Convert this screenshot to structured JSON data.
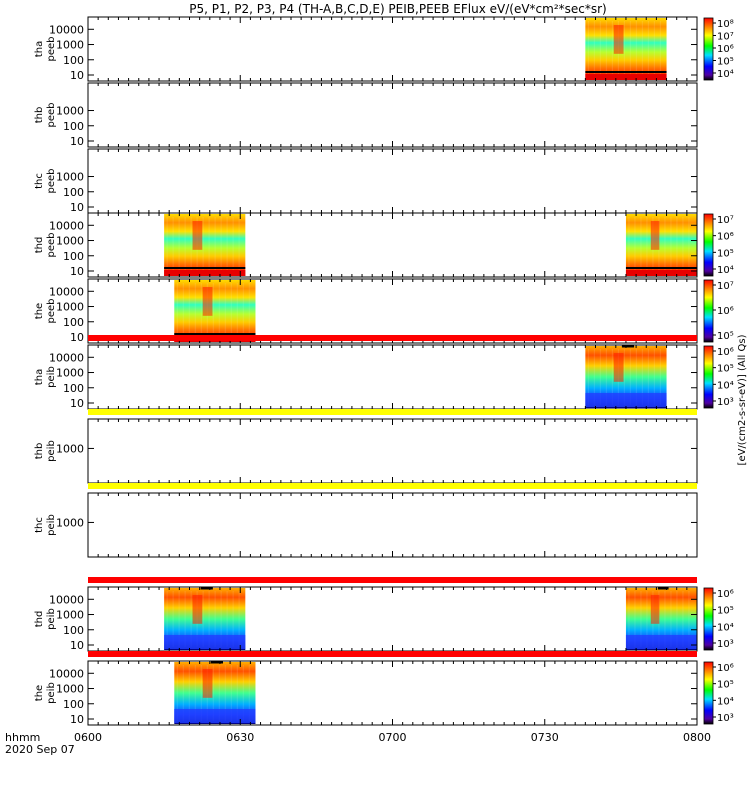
{
  "chart_data": {
    "type": "heatmap",
    "title": "P5, P1, P2, P3, P4 (TH-A,B,C,D,E) PEIB,PEEB EFlux eV/(eV*cm²*sec*sr)",
    "x_axis": {
      "ticks": [
        "0600",
        "0630",
        "0700",
        "0730",
        "0800"
      ],
      "range_minutes": [
        0,
        120
      ],
      "label_lines": [
        "hhmm",
        "2020 Sep 07"
      ]
    },
    "colorbar_units": "[eV/(cm2-s-sr-eV)] (All Qs)",
    "panels": [
      {
        "name": "tha-peeb",
        "ylabel": [
          "tha",
          "peeb"
        ],
        "yticks": [
          "10",
          "100",
          "1000",
          "10000"
        ],
        "cbar_ticks": [
          "10⁴",
          "10⁵",
          "10⁶",
          "10⁷",
          "10⁸"
        ],
        "blocks": [
          [
            98,
            114
          ]
        ],
        "stripe": null
      },
      {
        "name": "thb-peeb",
        "ylabel": [
          "thb",
          "peeb"
        ],
        "yticks": [
          "10",
          "100",
          "1000"
        ],
        "cbar_ticks": [],
        "blocks": [],
        "stripe": null
      },
      {
        "name": "thc-peeb",
        "ylabel": [
          "thc",
          "peeb"
        ],
        "yticks": [
          "10",
          "100",
          "1000"
        ],
        "cbar_ticks": [],
        "blocks": [],
        "stripe": null
      },
      {
        "name": "thd-peeb",
        "ylabel": [
          "thd",
          "peeb"
        ],
        "yticks": [
          "10",
          "100",
          "1000",
          "10000"
        ],
        "cbar_ticks": [
          "10⁴",
          "10⁵",
          "10⁶",
          "10⁷"
        ],
        "blocks": [
          [
            15,
            31
          ],
          [
            106,
            120
          ]
        ],
        "stripe": null
      },
      {
        "name": "the-peeb",
        "ylabel": [
          "the",
          "peeb"
        ],
        "yticks": [
          "10",
          "100",
          "1000",
          "10000"
        ],
        "cbar_ticks": [
          "10⁵",
          "10⁶",
          "10⁷"
        ],
        "blocks": [
          [
            17,
            33
          ]
        ],
        "stripe": null
      },
      {
        "name": "tha-peib",
        "ylabel": [
          "tha",
          "peib"
        ],
        "yticks": [
          "10",
          "100",
          "1000",
          "10000"
        ],
        "cbar_ticks": [
          "10³",
          "10⁴",
          "10⁵",
          "10⁶"
        ],
        "blocks": [
          [
            98,
            114
          ]
        ],
        "stripe": "red"
      },
      {
        "name": "thb-peib",
        "ylabel": [
          "thb",
          "peib"
        ],
        "yticks": [
          "1000"
        ],
        "cbar_ticks": [],
        "blocks": [],
        "stripe": "yellow"
      },
      {
        "name": "thc-peib",
        "ylabel": [
          "thc",
          "peib"
        ],
        "yticks": [
          "1000"
        ],
        "cbar_ticks": [],
        "blocks": [],
        "stripe": "yellow"
      },
      {
        "name": "thd-peib",
        "ylabel": [
          "thd",
          "peib"
        ],
        "yticks": [
          "10",
          "100",
          "1000",
          "10000"
        ],
        "cbar_ticks": [
          "10³",
          "10⁴",
          "10⁵",
          "10⁶"
        ],
        "blocks": [
          [
            15,
            31
          ],
          [
            106,
            120
          ]
        ],
        "stripe": "red"
      },
      {
        "name": "the-peib",
        "ylabel": [
          "the",
          "peib"
        ],
        "yticks": [
          "10",
          "100",
          "1000",
          "10000"
        ],
        "cbar_ticks": [
          "10³",
          "10⁴",
          "10⁵",
          "10⁶"
        ],
        "blocks": [
          [
            17,
            33
          ]
        ],
        "stripe": "red"
      }
    ]
  }
}
